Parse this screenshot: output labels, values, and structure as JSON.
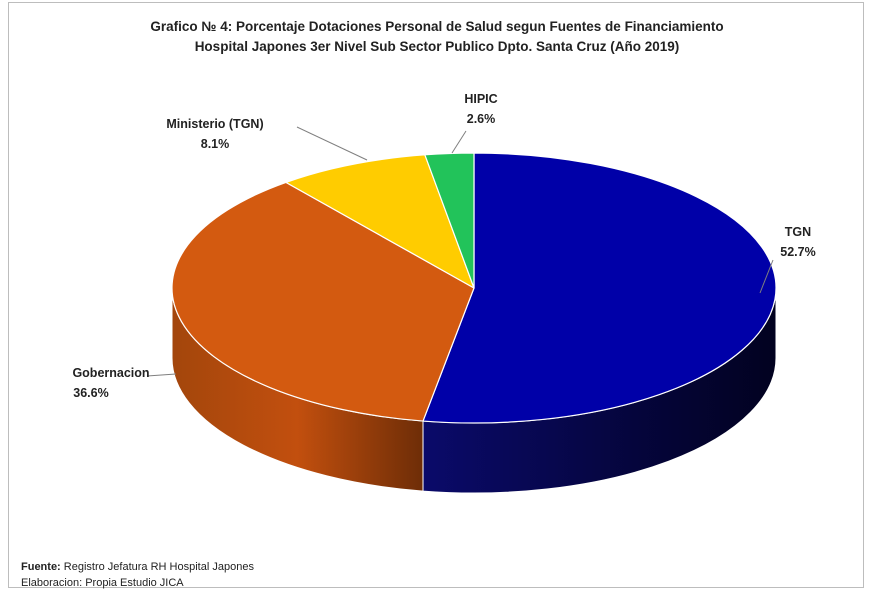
{
  "chart_data": {
    "type": "pie",
    "title_line1": "Grafico № 4: Porcentaje Dotaciones Personal de Salud segun Fuentes de Financiamiento",
    "title_line2": "Hospital Japones 3er Nivel Sub Sector Publico Dpto. Santa Cruz (Año 2019)",
    "slices": [
      {
        "label": "TGN",
        "value": 52.7,
        "value_label": "52.7%",
        "color": "#0000a8",
        "side_color": "#060650"
      },
      {
        "label": "Gobernacion",
        "value": 36.6,
        "value_label": "36.6%",
        "color": "#d35a10",
        "side_color": "#8a3a0a"
      },
      {
        "label": "Ministerio (TGN)",
        "value": 8.1,
        "value_label": "8.1%",
        "color": "#ffcc00",
        "side_color": "#a88600"
      },
      {
        "label": "HIPIC",
        "value": 2.6,
        "value_label": "2.6%",
        "color": "#22c35a",
        "side_color": "#137a36"
      }
    ]
  },
  "footer": {
    "source_label": "Fuente:",
    "source_text": " Registro Jefatura RH Hospital Japones",
    "elab_text": "Elaboracion: Propia Estudio JICA"
  }
}
